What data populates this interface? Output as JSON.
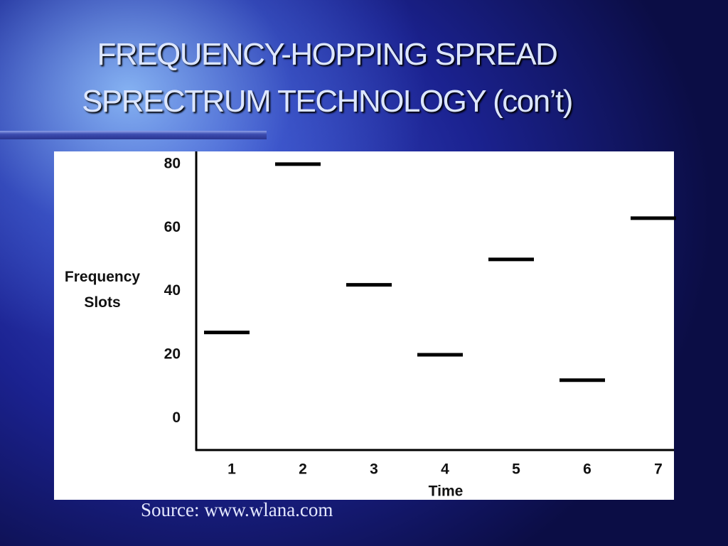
{
  "slide": {
    "title": [
      "FREQUENCY-HOPPING SPREAD",
      "SPRECTRUM TECHNOLOGY (con’t)"
    ],
    "source": "Source: www.wlana.com"
  },
  "chart_data": {
    "type": "segment",
    "x_label": "Time",
    "y_label": "Frequency Slots",
    "categories": [
      "1",
      "2",
      "3",
      "4",
      "5",
      "6",
      "7"
    ],
    "values": [
      27,
      80,
      42,
      20,
      50,
      12,
      63
    ],
    "color": "#000000",
    "ylim": [
      -10,
      84
    ],
    "yticks": [
      0,
      20,
      40,
      60,
      80
    ],
    "grid": false
  }
}
